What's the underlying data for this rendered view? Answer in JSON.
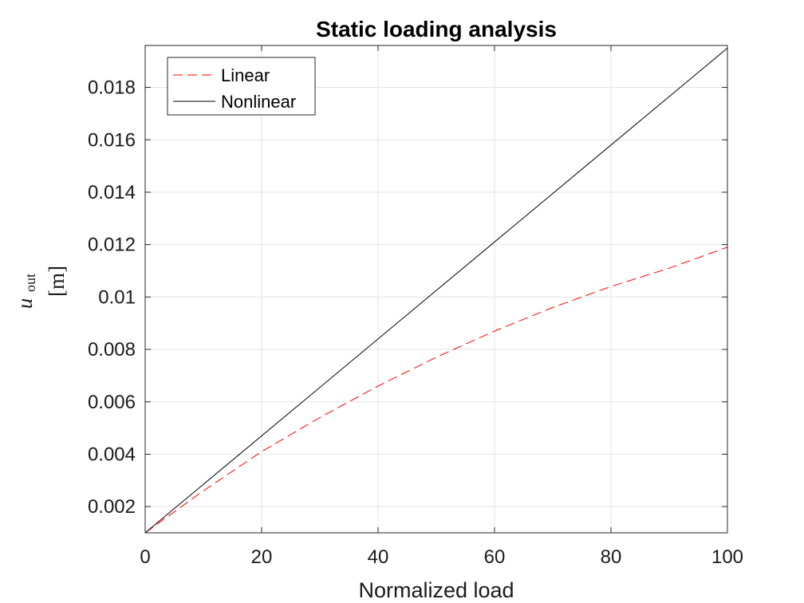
{
  "chart_data": {
    "type": "line",
    "title": "Static loading analysis",
    "xlabel": "Normalized load",
    "ylabel": {
      "symbol": "u",
      "subscript": "out",
      "unit": "[m]"
    },
    "xlim": [
      0,
      100
    ],
    "ylim": [
      0.001,
      0.0196
    ],
    "xticks": [
      0,
      20,
      40,
      60,
      80,
      100
    ],
    "xtick_labels": [
      "0",
      "20",
      "40",
      "60",
      "80",
      "100"
    ],
    "yticks": [
      0.002,
      0.004,
      0.006,
      0.008,
      0.01,
      0.012,
      0.014,
      0.016,
      0.018
    ],
    "ytick_labels": [
      "0.002",
      "0.004",
      "0.006",
      "0.008",
      "0.01",
      "0.012",
      "0.014",
      "0.016",
      "0.018"
    ],
    "grid": true,
    "legend_position": "top-left",
    "series": [
      {
        "name": "Linear",
        "color": "#ff0000",
        "style": "dashed",
        "x": [
          0,
          10,
          20,
          30,
          40,
          50,
          60,
          70,
          80,
          90,
          100
        ],
        "y": [
          0.001,
          0.0026,
          0.0041,
          0.0054,
          0.0066,
          0.0077,
          0.0087,
          0.0096,
          0.0104,
          0.0111,
          0.0119
        ]
      },
      {
        "name": "Nonlinear",
        "color": "#000000",
        "style": "solid",
        "x": [
          0,
          100
        ],
        "y": [
          0.001,
          0.0195
        ]
      }
    ]
  }
}
